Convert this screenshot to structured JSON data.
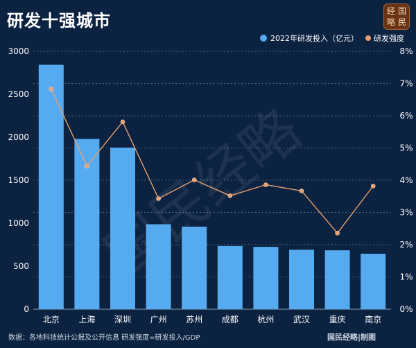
{
  "title": "研发十强城市",
  "logo": {
    "chars": [
      "经",
      "国",
      "略",
      "民"
    ]
  },
  "watermark": "国民经略",
  "footer": {
    "source": "数据：各地科技统计公报及公开信息 研发强度=研发投入/GDP",
    "credit": "国民经略|制图"
  },
  "colors": {
    "background": "#0b2240",
    "bar": "#56aaf0",
    "line": "#e8a070",
    "grid": "#8aa0b8"
  },
  "chart_data": {
    "type": "bar",
    "categories": [
      "北京",
      "上海",
      "深圳",
      "广州",
      "苏州",
      "成都",
      "杭州",
      "武汉",
      "重庆",
      "南京"
    ],
    "series": [
      {
        "name": "2022年研发投入（亿元）",
        "type": "bar",
        "axis": "left",
        "values": [
          2843,
          1981,
          1880,
          988,
          960,
          735,
          725,
          692,
          685,
          645
        ]
      },
      {
        "name": "研发强度",
        "type": "line",
        "axis": "right",
        "values": [
          6.83,
          4.44,
          5.81,
          3.43,
          4.01,
          3.52,
          3.86,
          3.67,
          2.36,
          3.82
        ]
      }
    ],
    "left_axis": {
      "min": 0,
      "max": 3000,
      "ticks": [
        0,
        500,
        1000,
        1500,
        2000,
        2500,
        3000
      ]
    },
    "right_axis": {
      "min": 0,
      "max": 8,
      "ticks": [
        "0%",
        "1%",
        "2%",
        "3%",
        "4%",
        "5%",
        "6%",
        "7%",
        "8%"
      ]
    },
    "legend_position": "top-right",
    "grid": true
  }
}
